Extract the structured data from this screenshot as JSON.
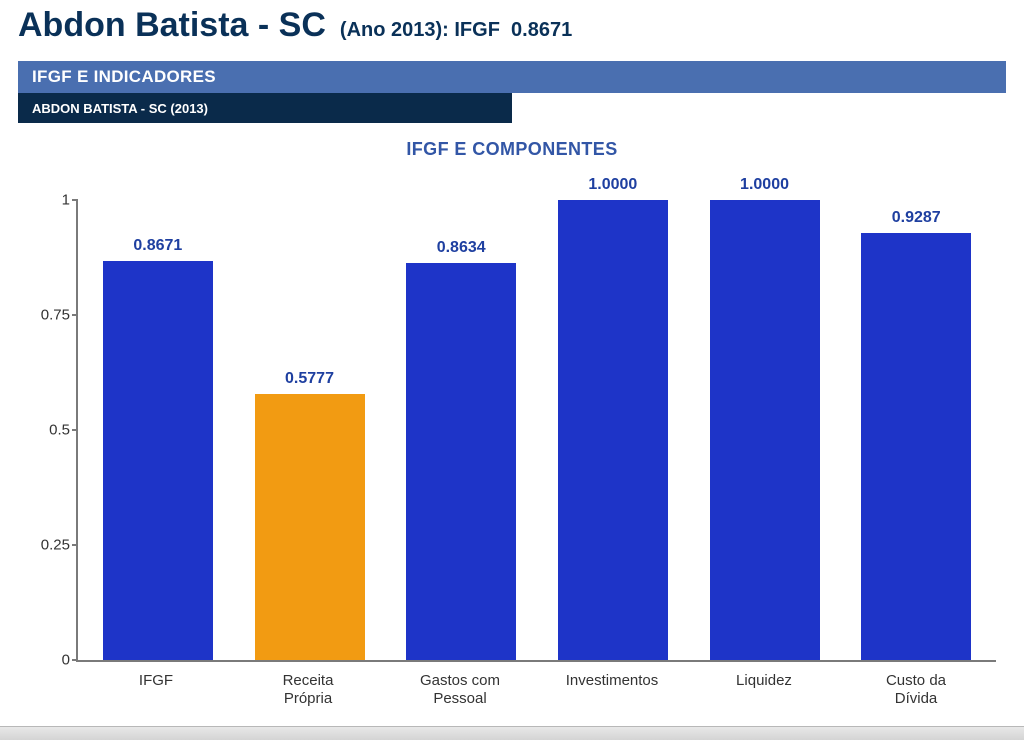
{
  "header": {
    "municipality": "Abdon Batista - SC",
    "year_label": "(Ano 2013):",
    "indicator_label": "IFGF",
    "indicator_value": "0.8671"
  },
  "band": {
    "title": "IFGF E INDICADORES",
    "subtitle": "ABDON BATISTA - SC (2013)"
  },
  "chart": {
    "type": "bar",
    "title": "IFGF E COMPONENTES",
    "ylim": [
      0,
      1
    ],
    "yticks": [
      0,
      0.25,
      0.5,
      0.75,
      1
    ],
    "ytick_labels": [
      "0",
      "0.25",
      "0.5",
      "0.75",
      "1"
    ],
    "axis_color": "#7a7a7a",
    "background_color": "#ffffff",
    "value_label_color": "#1e3fa0",
    "value_label_fontsize": 16,
    "axis_label_fontsize": 15,
    "title_fontsize": 18,
    "title_color": "#3256a6",
    "bar_width_pct": 76,
    "categories": [
      "IFGF",
      "Receita Própria",
      "Gastos com Pessoal",
      "Investimentos",
      "Liquidez",
      "Custo da Dívida"
    ],
    "values": [
      0.8671,
      0.5777,
      0.8634,
      1.0,
      1.0,
      0.9287
    ],
    "value_labels": [
      "0.8671",
      "0.5777",
      "0.8634",
      "1.0000",
      "1.0000",
      "0.9287"
    ],
    "bar_colors": [
      "#1e34c8",
      "#f29b12",
      "#1e34c8",
      "#1e34c8",
      "#1e34c8",
      "#1e34c8"
    ]
  },
  "colors": {
    "page_title": "#0a3158",
    "band_bg": "#4a6fb0",
    "subband_bg": "#0a2a4a",
    "text_white": "#ffffff"
  }
}
